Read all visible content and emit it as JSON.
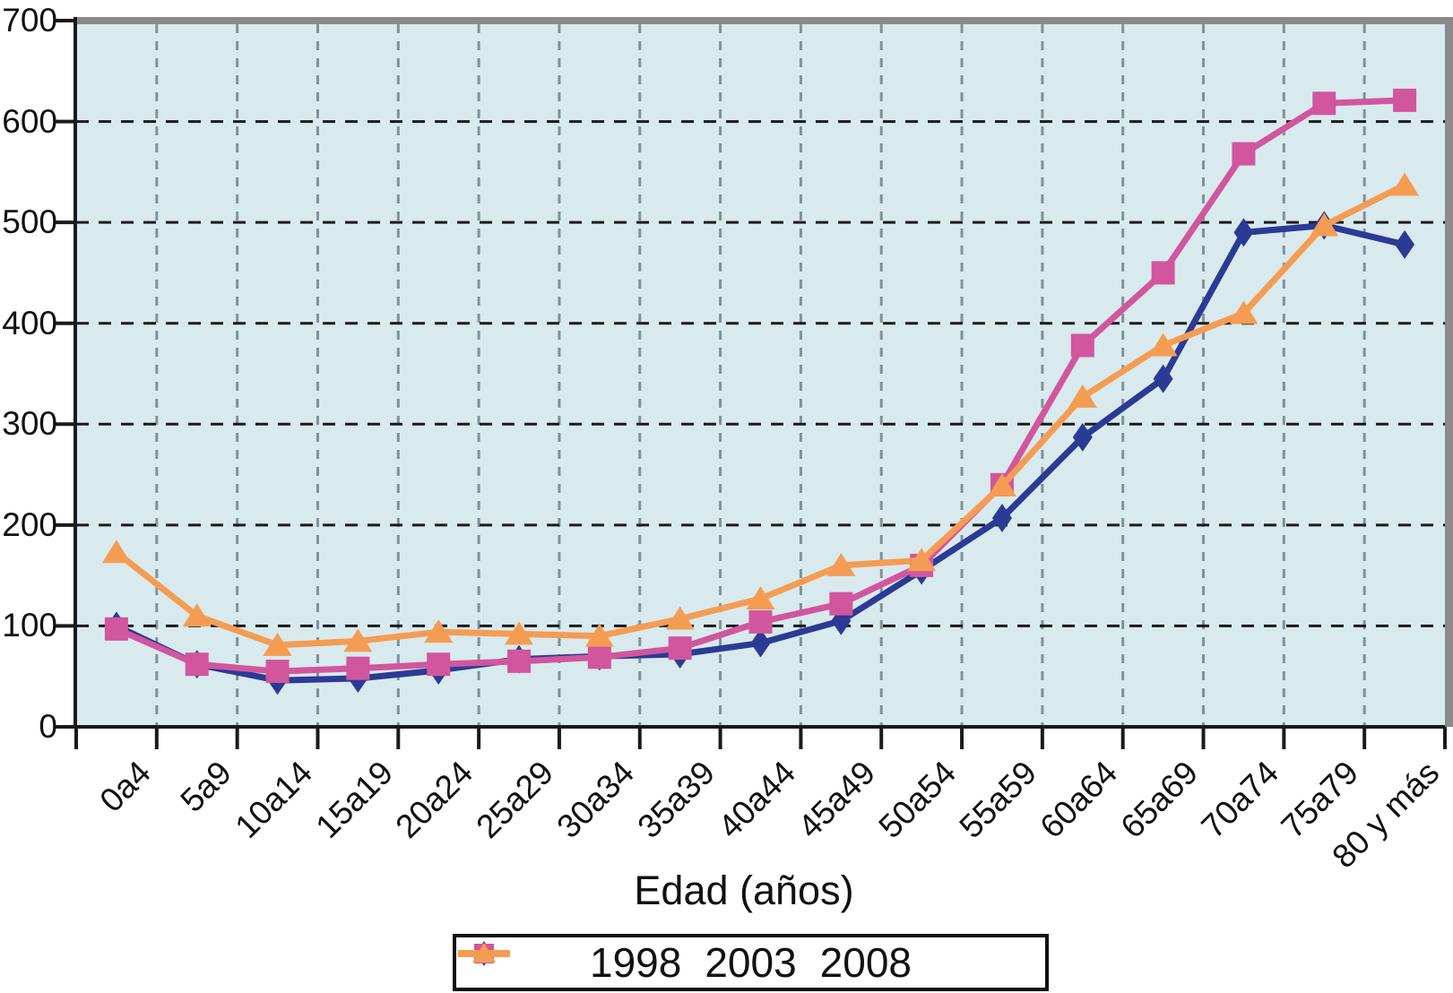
{
  "chart_data": {
    "type": "line",
    "title": "",
    "xlabel": "Edad (años)",
    "ylabel": "",
    "ylim": [
      0,
      700
    ],
    "yticks": [
      "0",
      "100",
      "200",
      "300",
      "400",
      "500",
      "600",
      "700"
    ],
    "grid": true,
    "legend_position": "bottom",
    "colors": {
      "plot_background": "#d8eaee",
      "horizontal_gridline": "#1a1a1a",
      "vertical_gridline": "#7f929b",
      "axis": "#1a1a1a",
      "frame_shadow": "#8a8a8a",
      "series_1998": "#2b3a94",
      "series_2003": "#d1569e",
      "series_2008": "#f59c53"
    },
    "categories": [
      "0a4",
      "5a9",
      "10a14",
      "15a19",
      "20a24",
      "25a29",
      "30a34",
      "35a39",
      "40a44",
      "45a49",
      "50a54",
      "55a59",
      "60a64",
      "65a69",
      "70a74",
      "75a79",
      "80 y más"
    ],
    "series": [
      {
        "name": "1998",
        "marker": "diamond",
        "color": "#2b3a94",
        "values": [
          100,
          62,
          46,
          48,
          56,
          67,
          70,
          72,
          83,
          105,
          155,
          207,
          287,
          345,
          490,
          497,
          478
        ]
      },
      {
        "name": "2003",
        "marker": "square",
        "color": "#d1569e",
        "values": [
          97,
          62,
          55,
          58,
          62,
          65,
          69,
          78,
          104,
          122,
          160,
          240,
          378,
          450,
          568,
          618,
          621
        ]
      },
      {
        "name": "2008",
        "marker": "triangle",
        "color": "#f59c53",
        "values": [
          173,
          110,
          81,
          85,
          94,
          92,
          90,
          107,
          127,
          160,
          165,
          239,
          327,
          378,
          410,
          497,
          537
        ]
      }
    ]
  }
}
